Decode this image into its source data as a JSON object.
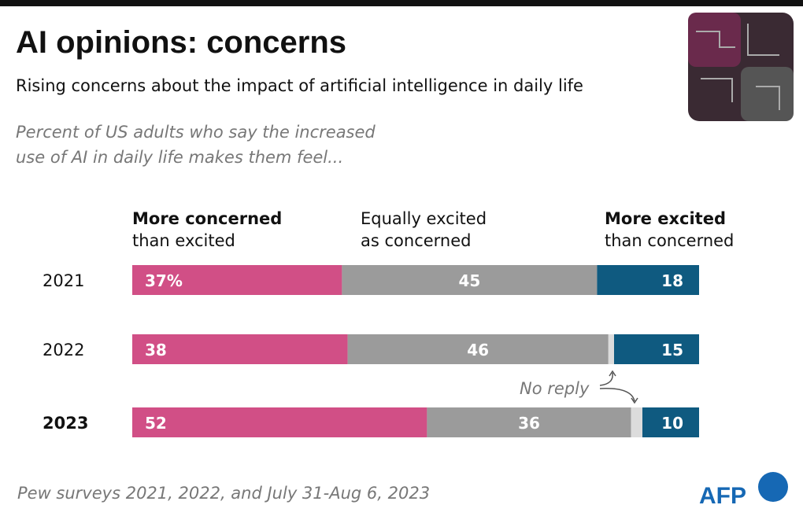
{
  "chart_data": {
    "type": "stacked-bar-horizontal",
    "title": "AI opinions: concerns",
    "subtitle": "Rising concerns about the impact of artificial intelligence in daily life",
    "note": [
      "Percent of US adults who say the increased",
      "use of AI in daily life makes them feel..."
    ],
    "source": "Pew surveys 2021, 2022, and July 31-Aug 6, 2023",
    "credit": "AFP",
    "categories": [
      "2021",
      "2022",
      "2023"
    ],
    "xlim": [
      0,
      100
    ],
    "series": [
      {
        "name": [
          "More concerned",
          "than excited"
        ],
        "color": "#d14f86",
        "values": [
          37,
          38,
          52
        ],
        "value_labels": [
          "37%",
          "38",
          "52"
        ]
      },
      {
        "name": [
          "Equally excited",
          "as concerned"
        ],
        "color": "#9b9b9b",
        "values": [
          45,
          46,
          36
        ]
      },
      {
        "name": "No reply",
        "color": "#dcdcdc",
        "values": [
          0,
          1,
          2
        ]
      },
      {
        "name": [
          "More excited",
          "than concerned"
        ],
        "color": "#0f5a80",
        "values": [
          18,
          15,
          10
        ]
      }
    ]
  }
}
